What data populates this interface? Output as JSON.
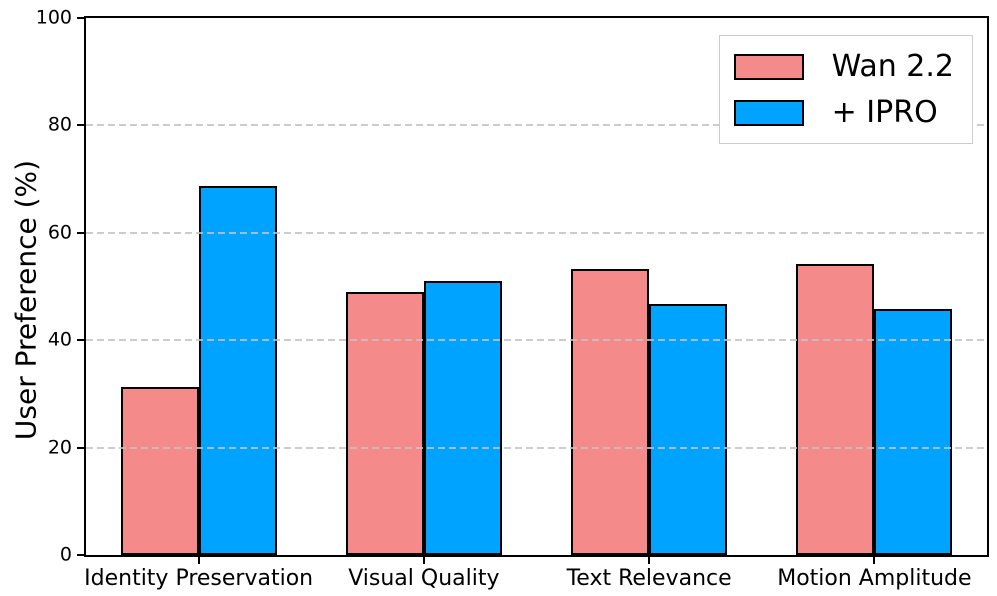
{
  "chart_data": {
    "type": "bar",
    "title": "",
    "xlabel": "",
    "ylabel": "User Preference (%)",
    "ylim": [
      0,
      100
    ],
    "yticks": [
      0,
      20,
      40,
      60,
      80,
      100
    ],
    "grid": "horizontal dashed gridlines at 20, 40, 60, 80",
    "legend_position": "upper right",
    "bar_edge_color": "#000000",
    "grid_color": "#c3c3c3",
    "categories": [
      "Identity Preservation",
      "Visual Quality",
      "Text Relevance",
      "Motion Amplitude"
    ],
    "series": [
      {
        "name": "Wan 2.2",
        "color": "#F48A8A",
        "values": [
          31.3,
          49.0,
          53.2,
          54.2
        ]
      },
      {
        "name": "+ IPRO",
        "color": "#00A3FF",
        "values": [
          68.7,
          51.0,
          46.8,
          45.8
        ]
      }
    ]
  }
}
